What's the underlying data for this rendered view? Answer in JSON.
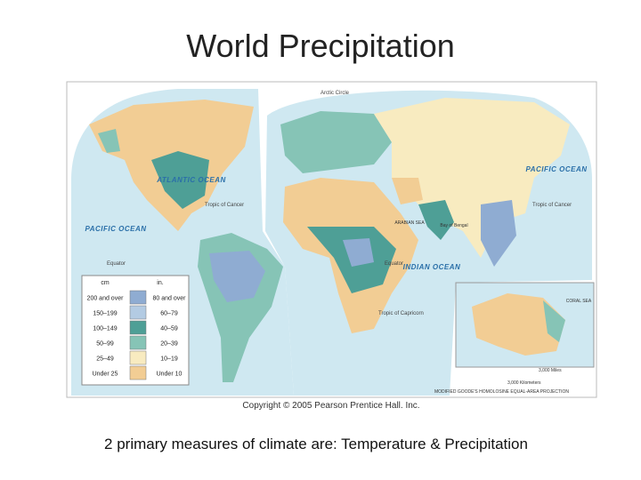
{
  "title": "World Precipitation",
  "map": {
    "ocean_labels": [
      "ATLANTIC OCEAN",
      "PACIFIC OCEAN",
      "PACIFIC OCEAN",
      "INDIAN OCEAN",
      "ARABIAN SEA",
      "Bay of Bengal",
      "CORAL SEA"
    ],
    "line_labels": [
      "Arctic Circle",
      "Tropic of Cancer",
      "Tropic of Cancer",
      "Equator",
      "Equator",
      "Tropic of Capricorn"
    ],
    "scale": [
      "3,000 Miles",
      "3,000 Kilometers"
    ],
    "projection": "MODIFIED GOODE'S HOMOLOSINE EQUAL-AREA PROJECTION"
  },
  "legend": {
    "headers": [
      "cm",
      "in."
    ],
    "rows": [
      {
        "cm": "200 and over",
        "in": "80 and over",
        "color": "#8facd2"
      },
      {
        "cm": "150–199",
        "in": "60–79",
        "color": "#b3cbe3"
      },
      {
        "cm": "100–149",
        "in": "40–59",
        "color": "#4e9f96"
      },
      {
        "cm": "50–99",
        "in": "20–39",
        "color": "#86c4b6"
      },
      {
        "cm": "25–49",
        "in": "10–19",
        "color": "#f8ebc0"
      },
      {
        "cm": "Under 25",
        "in": "Under 10",
        "color": "#f2cd94"
      }
    ]
  },
  "copyright": "Copyright © 2005 Pearson Prentice Hall. Inc.",
  "caption": "2 primary measures of climate are: Temperature & Precipitation"
}
